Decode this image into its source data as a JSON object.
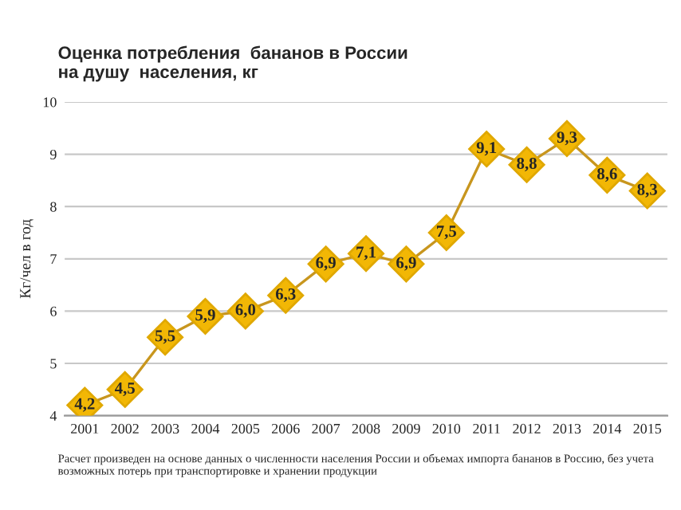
{
  "chart_data": {
    "type": "line",
    "title": "Оценка потребления  бананов в России\nна душу  населения, кг",
    "ylabel": "Кг/чел в год",
    "categories": [
      "2001",
      "2002",
      "2003",
      "2004",
      "2005",
      "2006",
      "2007",
      "2008",
      "2009",
      "2010",
      "2011",
      "2012",
      "2013",
      "2014",
      "2015"
    ],
    "series": [
      {
        "color": "#c8961e",
        "values": [
          4.2,
          4.5,
          5.5,
          5.9,
          6.0,
          6.3,
          6.9,
          7.1,
          6.9,
          7.5,
          9.1,
          8.8,
          9.3,
          8.6,
          8.3
        ],
        "value_labels": [
          "4,2",
          "4,5",
          "5,5",
          "5,9",
          "6,0",
          "6,3",
          "6,9",
          "7,1",
          "6,9",
          "7,5",
          "9,1",
          "8,8",
          "9,3",
          "8,6",
          "8,3"
        ]
      }
    ],
    "ylim": [
      4,
      10
    ],
    "yticks": [
      4,
      5,
      6,
      7,
      8,
      9,
      10
    ],
    "grid": "y",
    "marker": "diamond",
    "line_style": "solid",
    "legend": false,
    "annotations": [
      "Расчет произведен на основе данных о численности населения России и объемах импорта бананов в Россию, без учета возможных потерь при транспортировке и хранении продукции"
    ]
  }
}
